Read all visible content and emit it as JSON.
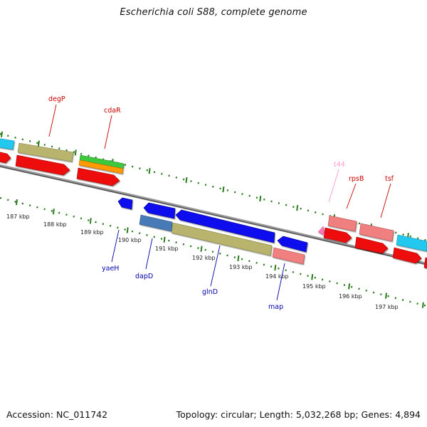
{
  "title": "Escherichia coli S88, complete genome",
  "footer": {
    "accession": "Accession: NC_011742",
    "summary": "Topology: circular; Length: 5,032,268 bp; Genes: 4,894"
  },
  "colors": {
    "backbone": "#7a7a7a",
    "tick": "#2a7a1e",
    "label_forward": "#cc0000",
    "label_reverse": "#0000aa",
    "label_trna": "#ff99cc"
  },
  "ticks": {
    "labels": [
      "187 kbp",
      "188 kbp",
      "189 kbp",
      "190 kbp",
      "191 kbp",
      "192 kbp",
      "193 kbp",
      "194 kbp",
      "195 kbp",
      "196 kbp",
      "197 kbp"
    ]
  },
  "genes": {
    "forward_labels": [
      {
        "name": "degP",
        "color": "#cc0000"
      },
      {
        "name": "cdaR",
        "color": "#cc0000"
      },
      {
        "name": "t44",
        "color": "#ff99cc"
      },
      {
        "name": "rpsB",
        "color": "#cc0000"
      },
      {
        "name": "tsf",
        "color": "#cc0000"
      }
    ],
    "reverse_labels": [
      {
        "name": "yaeH",
        "color": "#0000aa"
      },
      {
        "name": "dapD",
        "color": "#0000aa"
      },
      {
        "name": "glnD",
        "color": "#0000aa"
      },
      {
        "name": "map",
        "color": "#0000aa"
      }
    ]
  }
}
